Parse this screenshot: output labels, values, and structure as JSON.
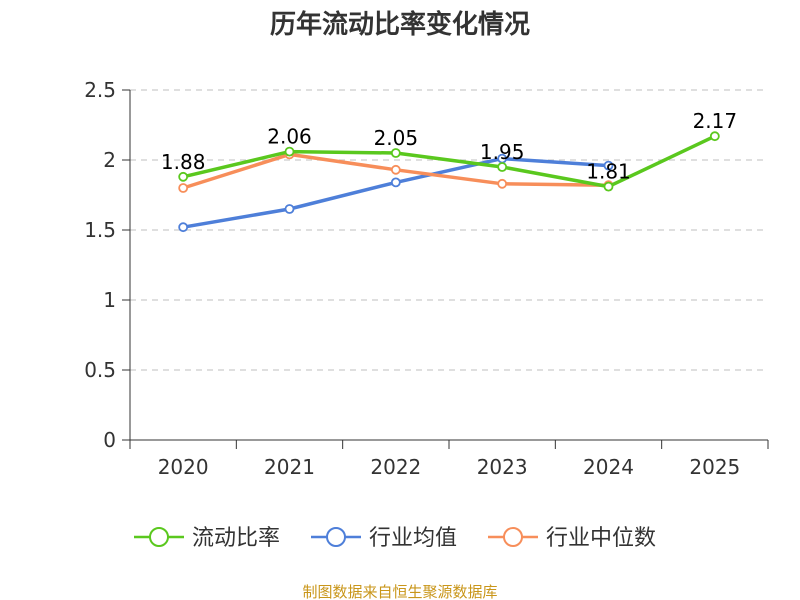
{
  "chart_data": {
    "type": "line",
    "title": "历年流动比率变化情况",
    "categories": [
      "2020",
      "2021",
      "2022",
      "2023",
      "2024",
      "2025"
    ],
    "ylim": [
      0,
      2.5
    ],
    "yticks": [
      "0",
      "0.5",
      "1",
      "1.5",
      "2",
      "2.5"
    ],
    "ytick_values": [
      0,
      0.5,
      1,
      1.5,
      2,
      2.5
    ],
    "grid": true,
    "legend_position": "bottom",
    "series": [
      {
        "name": "流动比率",
        "color": "#5ac81e",
        "values": [
          1.88,
          2.06,
          2.05,
          1.95,
          1.81,
          2.17
        ],
        "labels": [
          "1.88",
          "2.06",
          "2.05",
          "1.95",
          "1.81",
          "2.17"
        ]
      },
      {
        "name": "行业均值",
        "color": "#4e7fd9",
        "values": [
          1.52,
          1.65,
          1.84,
          2.01,
          1.96,
          null
        ]
      },
      {
        "name": "行业中位数",
        "color": "#f78e5a",
        "values": [
          1.8,
          2.04,
          1.93,
          1.83,
          1.82,
          null
        ]
      }
    ],
    "source": "制图数据来自恒生聚源数据库",
    "source_color": "#c9961a"
  }
}
